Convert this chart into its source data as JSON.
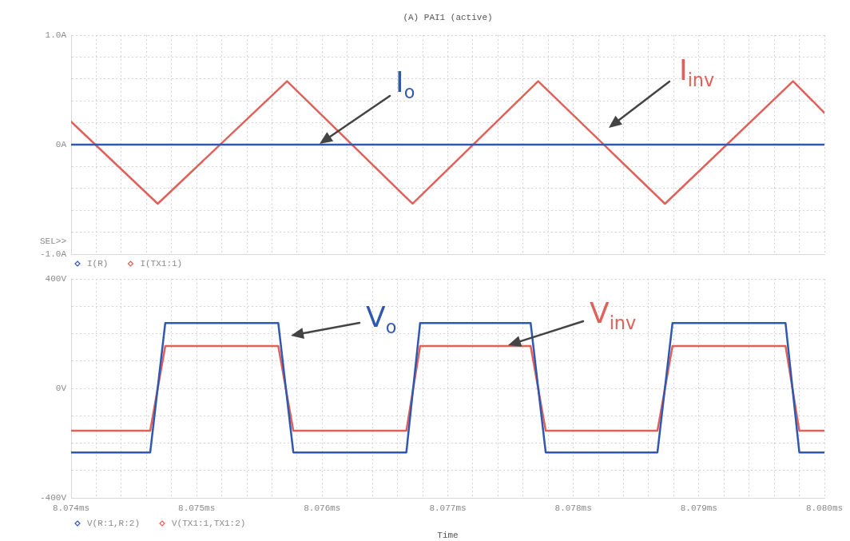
{
  "chart_data": [
    {
      "type": "line",
      "title": "(A) PAI1 (active)",
      "legend": "bottom left",
      "grid": true,
      "tick_labels": "y",
      "xlim": [
        8.074,
        8.08
      ],
      "xticks": [
        {
          "value": 8.074,
          "label": null
        },
        {
          "value": 8.0742,
          "label": null
        },
        {
          "value": 8.0744,
          "label": null
        },
        {
          "value": 8.0746,
          "label": null
        },
        {
          "value": 8.0748,
          "label": null
        },
        {
          "value": 8.075,
          "label": null
        },
        {
          "value": 8.0752,
          "label": null
        },
        {
          "value": 8.0754,
          "label": null
        },
        {
          "value": 8.0756,
          "label": null
        },
        {
          "value": 8.0758,
          "label": null
        },
        {
          "value": 8.076,
          "label": null
        },
        {
          "value": 8.0762,
          "label": null
        },
        {
          "value": 8.0764,
          "label": null
        },
        {
          "value": 8.0766,
          "label": null
        },
        {
          "value": 8.0768,
          "label": null
        },
        {
          "value": 8.077,
          "label": null
        },
        {
          "value": 8.0772,
          "label": null
        },
        {
          "value": 8.0774,
          "label": null
        },
        {
          "value": 8.0776,
          "label": null
        },
        {
          "value": 8.0778,
          "label": null
        },
        {
          "value": 8.078,
          "label": null
        },
        {
          "value": 8.0782,
          "label": null
        },
        {
          "value": 8.0784,
          "label": null
        },
        {
          "value": 8.0786,
          "label": null
        },
        {
          "value": 8.0788,
          "label": null
        },
        {
          "value": 8.079,
          "label": null
        },
        {
          "value": 8.0792,
          "label": null
        },
        {
          "value": 8.0794,
          "label": null
        },
        {
          "value": 8.0796,
          "label": null
        },
        {
          "value": 8.0798,
          "label": null
        },
        {
          "value": 8.08,
          "label": null
        }
      ],
      "ylim": [
        -1,
        1
      ],
      "yticks": [
        {
          "value": -1,
          "label": "-1.0A"
        },
        {
          "value": -0.8,
          "label": null
        },
        {
          "value": -0.6,
          "label": null
        },
        {
          "value": -0.4,
          "label": null
        },
        {
          "value": -0.2,
          "label": null
        },
        {
          "value": 0,
          "label": "0A"
        },
        {
          "value": 0.2,
          "label": null
        },
        {
          "value": 0.4,
          "label": null
        },
        {
          "value": 0.6,
          "label": null
        },
        {
          "value": 0.8,
          "label": null
        },
        {
          "value": 1,
          "label": "1.0A"
        }
      ],
      "series": [
        {
          "name": "I(R)",
          "color": "#3058b0",
          "x": [
            8.074,
            8.08
          ],
          "values": [
            0,
            0
          ]
        },
        {
          "name": "I(TX1:1)",
          "color": "#e0605a",
          "x": [
            8.074,
            8.07469,
            8.07572,
            8.07672,
            8.07772,
            8.07873,
            8.07975,
            8.08
          ],
          "values": [
            0.21,
            -0.54,
            0.58,
            -0.54,
            0.58,
            -0.54,
            0.58,
            0.29
          ]
        }
      ],
      "annotations": [
        "SEL>>",
        "I$_{o}$",
        "I$_{inv}$"
      ]
    },
    {
      "type": "line",
      "xlabel": "Time",
      "legend": "bottom left",
      "grid": true,
      "xlim": [
        8.074,
        8.08
      ],
      "xticks": [
        {
          "value": 8.074,
          "label": "8.074ms"
        },
        {
          "value": 8.0742,
          "label": null
        },
        {
          "value": 8.0744,
          "label": null
        },
        {
          "value": 8.0746,
          "label": null
        },
        {
          "value": 8.0748,
          "label": null
        },
        {
          "value": 8.075,
          "label": "8.075ms"
        },
        {
          "value": 8.0752,
          "label": null
        },
        {
          "value": 8.0754,
          "label": null
        },
        {
          "value": 8.0756,
          "label": null
        },
        {
          "value": 8.0758,
          "label": null
        },
        {
          "value": 8.076,
          "label": "8.076ms"
        },
        {
          "value": 8.0762,
          "label": null
        },
        {
          "value": 8.0764,
          "label": null
        },
        {
          "value": 8.0766,
          "label": null
        },
        {
          "value": 8.0768,
          "label": null
        },
        {
          "value": 8.077,
          "label": "8.077ms"
        },
        {
          "value": 8.0772,
          "label": null
        },
        {
          "value": 8.0774,
          "label": null
        },
        {
          "value": 8.0776,
          "label": null
        },
        {
          "value": 8.0778,
          "label": null
        },
        {
          "value": 8.078,
          "label": "8.078ms"
        },
        {
          "value": 8.0782,
          "label": null
        },
        {
          "value": 8.0784,
          "label": null
        },
        {
          "value": 8.0786,
          "label": null
        },
        {
          "value": 8.0788,
          "label": null
        },
        {
          "value": 8.079,
          "label": "8.079ms"
        },
        {
          "value": 8.0792,
          "label": null
        },
        {
          "value": 8.0794,
          "label": null
        },
        {
          "value": 8.0796,
          "label": null
        },
        {
          "value": 8.0798,
          "label": null
        },
        {
          "value": 8.08,
          "label": "8.080ms"
        }
      ],
      "ylim": [
        -400,
        400
      ],
      "yticks": [
        {
          "value": -400,
          "label": "-400V"
        },
        {
          "value": -300,
          "label": null
        },
        {
          "value": -200,
          "label": null
        },
        {
          "value": -100,
          "label": null
        },
        {
          "value": 0,
          "label": "0V"
        },
        {
          "value": 100,
          "label": null
        },
        {
          "value": 200,
          "label": null
        },
        {
          "value": 300,
          "label": null
        },
        {
          "value": 400,
          "label": "400V"
        }
      ],
      "series": [
        {
          "name": "V(R:1,R:2)",
          "color": "#3058b0",
          "x": [
            8.074,
            8.07463,
            8.07475,
            8.07565,
            8.07577,
            8.07667,
            8.07678,
            8.07766,
            8.07778,
            8.07867,
            8.07879,
            8.07969,
            8.0798,
            8.08
          ],
          "values": [
            -234,
            -234,
            239,
            239,
            -234,
            -234,
            239,
            239,
            -234,
            -234,
            239,
            239,
            -234,
            -234
          ]
        },
        {
          "name": "V(TX1:1,TX1:2)",
          "color": "#e0605a",
          "x": [
            8.074,
            8.07463,
            8.07475,
            8.07565,
            8.07577,
            8.07667,
            8.07678,
            8.07766,
            8.07778,
            8.07867,
            8.07879,
            8.07969,
            8.0798,
            8.08
          ],
          "values": [
            -155,
            -155,
            155,
            155,
            -155,
            -155,
            155,
            155,
            -155,
            -155,
            155,
            155,
            -155,
            -155
          ]
        }
      ],
      "annotations": [
        "V$_{o}$",
        "V$_{inv}$"
      ]
    }
  ]
}
